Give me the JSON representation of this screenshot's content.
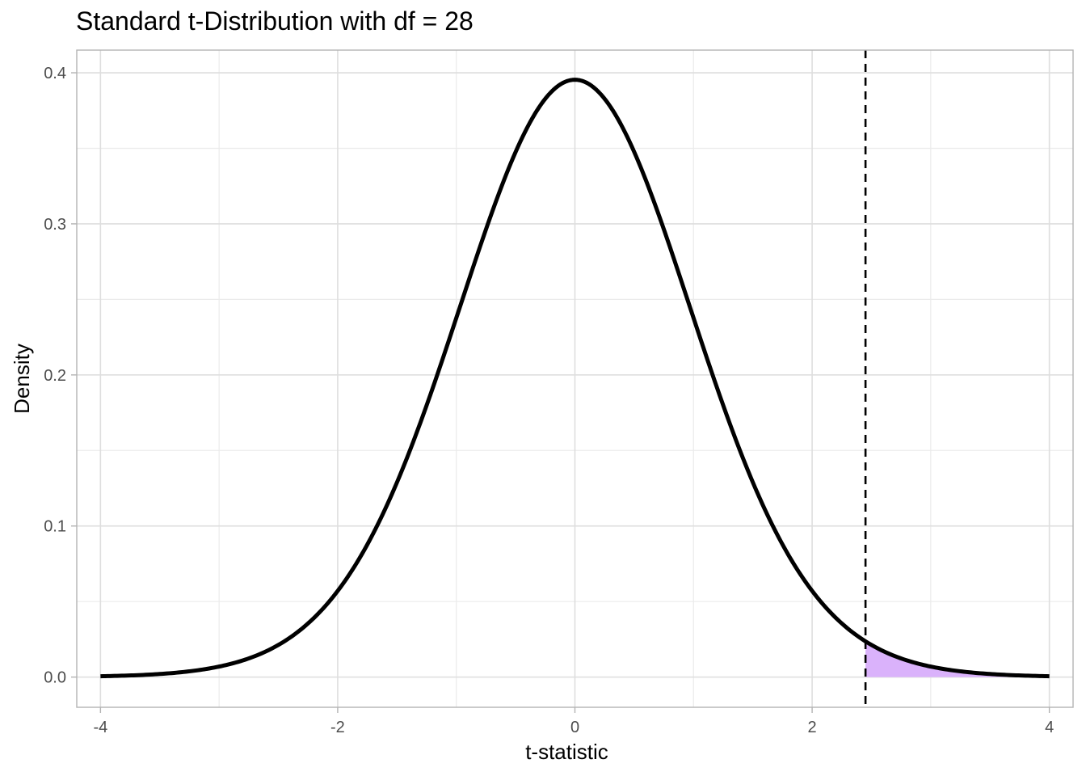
{
  "chart_data": {
    "type": "area",
    "title": "Standard t-Distribution with df = 28",
    "xlabel": "t-statistic",
    "ylabel": "Density",
    "xlim": [
      -4.2,
      4.2
    ],
    "ylim": [
      -0.02,
      0.415
    ],
    "x_ticks": [
      -4,
      -2,
      0,
      2,
      4
    ],
    "x_tick_labels": [
      "-4",
      "-2",
      "0",
      "2",
      "4"
    ],
    "y_ticks": [
      0.0,
      0.1,
      0.2,
      0.3,
      0.4
    ],
    "y_tick_labels": [
      "0.0",
      "0.1",
      "0.2",
      "0.3",
      "0.4"
    ],
    "grid": true,
    "series": [
      {
        "df": 28,
        "x_range": [
          -4,
          4
        ],
        "color": "#000000"
      }
    ],
    "critical_value": 2.45,
    "shaded_region": {
      "from": 2.45,
      "to": 4,
      "color": "#dab2fb"
    },
    "vline": {
      "x": 2.45,
      "style": "dashed",
      "color": "#000000"
    }
  }
}
